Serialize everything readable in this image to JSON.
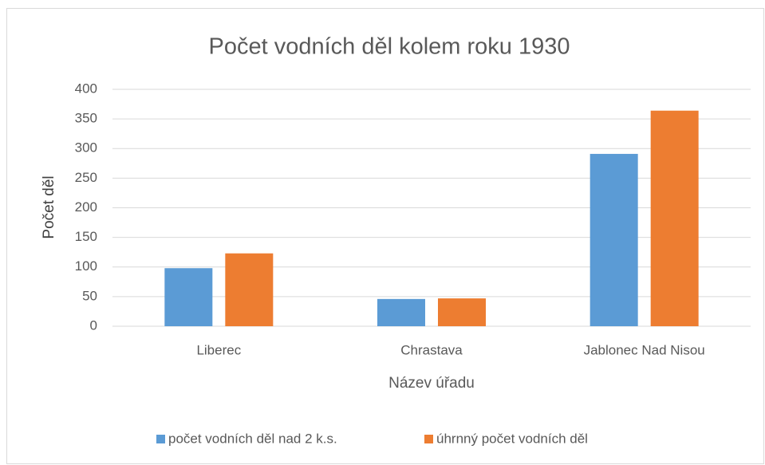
{
  "chart_data": {
    "type": "bar",
    "title": "Počet vodních děl kolem roku 1930",
    "x_label": "Název úřadu",
    "y_label": "Počet děl",
    "categories": [
      "Liberec",
      "Chrastava",
      "Jablonec Nad Nisou"
    ],
    "series": [
      {
        "name": "počet vodních děl nad 2 k.s.",
        "color": "#5b9bd5",
        "values": [
          98,
          46,
          291
        ]
      },
      {
        "name": "úhrnný počet vodních děl",
        "color": "#ed7d31",
        "values": [
          123,
          47,
          364
        ]
      }
    ],
    "ylim": [
      0,
      400
    ],
    "yticks": [
      0,
      50,
      100,
      150,
      200,
      250,
      300,
      350,
      400
    ],
    "grid": true,
    "legend": "bottom"
  }
}
